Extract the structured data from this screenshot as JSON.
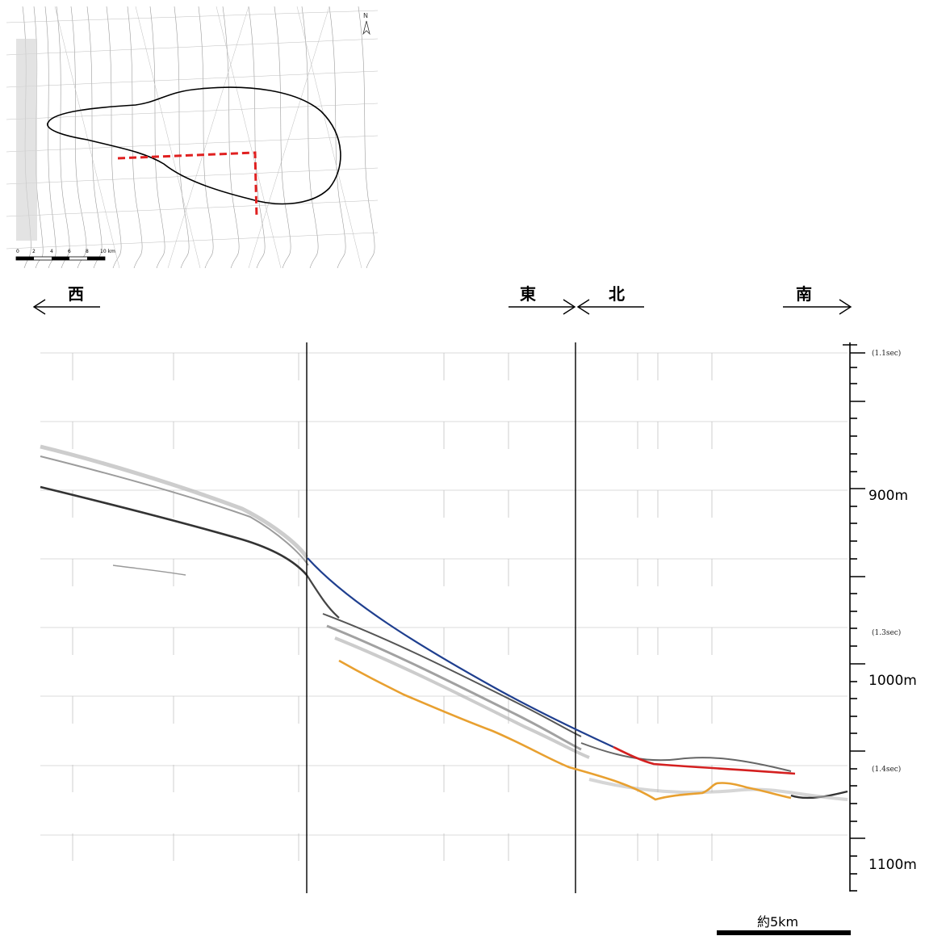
{
  "map": {
    "north_label": "N",
    "scale_ticks": [
      "0",
      "2",
      "4",
      "6",
      "8",
      "10 km"
    ]
  },
  "directions": {
    "west": "西",
    "east": "東",
    "north": "北",
    "south": "南"
  },
  "depth_labels": [
    "900m",
    "1000m",
    "1100m"
  ],
  "time_labels": [
    "(1.1sec)",
    "(1.3sec)",
    "(1.4sec)"
  ],
  "scale_bar": {
    "label": "約5km"
  },
  "colors": {
    "blue_line": "#1f3f8f",
    "red_line": "#d42020",
    "orange_line": "#e8a030",
    "route_dashed": "#e02020"
  }
}
